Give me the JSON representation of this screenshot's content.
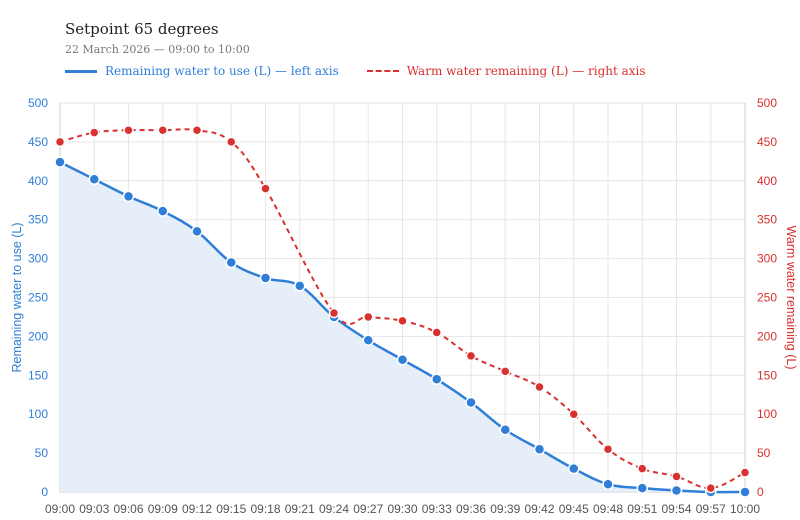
{
  "title": "Setpoint 65 degrees",
  "subtitle": "22 March 2026 — 09:00 to 10:00",
  "colors": {
    "left_series": "#2f7ed8",
    "right_series": "#d93030",
    "area_fill": "#e3edf8",
    "grid": "#e6e6e6"
  },
  "chart_data": {
    "type": "line",
    "title": "Setpoint 65 degrees",
    "subtitle": "22 March 2026 — 09:00 to 10:00",
    "x": [
      "09:00",
      "09:03",
      "09:06",
      "09:09",
      "09:12",
      "09:15",
      "09:18",
      "09:21",
      "09:24",
      "09:27",
      "09:30",
      "09:33",
      "09:36",
      "09:39",
      "09:42",
      "09:45",
      "09:48",
      "09:51",
      "09:54",
      "09:57",
      "10:00"
    ],
    "series": [
      {
        "name": "Remaining water to use (L) — left axis",
        "axis": "left",
        "style": "solid-area",
        "values": [
          424,
          402,
          380,
          361,
          335,
          295,
          275,
          265,
          225,
          195,
          170,
          145,
          115,
          80,
          55,
          30,
          10,
          5,
          2,
          0,
          0
        ]
      },
      {
        "name": "Warm water remaining (L) — right axis",
        "axis": "right",
        "style": "dashed",
        "values": [
          450,
          462,
          465,
          465,
          465,
          450,
          390,
          null,
          230,
          225,
          220,
          205,
          175,
          155,
          135,
          100,
          55,
          30,
          20,
          5,
          25
        ]
      }
    ],
    "ylabel_left": "Remaining water to use (L)",
    "ylabel_right": "Warm water remaining (L)",
    "ylim_left": [
      0,
      500
    ],
    "ylim_right": [
      0,
      500
    ],
    "yticks": [
      0,
      50,
      100,
      150,
      200,
      250,
      300,
      350,
      400,
      450,
      500
    ],
    "grid": true,
    "legend_position": "top-left"
  }
}
